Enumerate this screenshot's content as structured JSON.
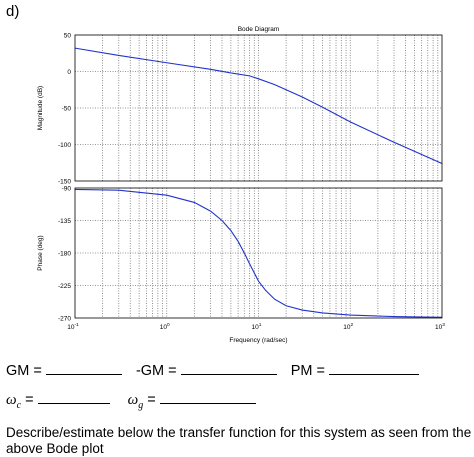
{
  "part_label": "d)",
  "chart_data": {
    "title": "Bode Diagram",
    "xlabel": "Frequency  (rad/sec)",
    "x_scale": "log",
    "xlim": [
      0.1,
      1000
    ],
    "grid": true,
    "x_ticks": [
      {
        "base": "10",
        "exp": "-1"
      },
      {
        "base": "10",
        "exp": "0"
      },
      {
        "base": "10",
        "exp": "1"
      },
      {
        "base": "10",
        "exp": "2"
      },
      {
        "base": "10",
        "exp": "3"
      }
    ],
    "magnitude": {
      "type": "line",
      "ylabel": "Magnitude (dB)",
      "ylim": [
        -150,
        50
      ],
      "y_ticks": [
        "50",
        "0",
        "-50",
        "-100",
        "-150"
      ],
      "x": [
        0.1,
        0.3,
        1,
        3,
        5,
        8,
        10,
        15,
        20,
        30,
        50,
        100,
        300,
        1000
      ],
      "y": [
        32,
        22,
        12,
        3,
        -2,
        -6,
        -10,
        -18,
        -25,
        -35,
        -49,
        -69,
        -97,
        -126
      ]
    },
    "phase": {
      "type": "line",
      "ylabel": "Phase (deg)",
      "ylim": [
        -270,
        -90
      ],
      "y_ticks": [
        "-90",
        "-135",
        "-180",
        "-225",
        "-270"
      ],
      "x": [
        0.1,
        0.3,
        0.5,
        1,
        2,
        3,
        4,
        5,
        6,
        7,
        8,
        10,
        12,
        15,
        20,
        30,
        50,
        100,
        300,
        1000
      ],
      "y": [
        -92,
        -93,
        -96,
        -100,
        -110,
        -122,
        -135,
        -149,
        -164,
        -180,
        -195,
        -219,
        -232,
        -244,
        -253,
        -259,
        -263,
        -266,
        -268,
        -269
      ]
    },
    "line_color": "#2233cc"
  },
  "answers": {
    "gm_label": "GM =",
    "neg_gm_label": "-GM =",
    "pm_label": "PM =",
    "wc_symbol": "ω",
    "wc_sub": "c",
    "wg_symbol": "ω",
    "wg_sub": "g",
    "eq": "="
  },
  "question": "Describe/estimate below the transfer function for this system as seen from the above Bode plot"
}
